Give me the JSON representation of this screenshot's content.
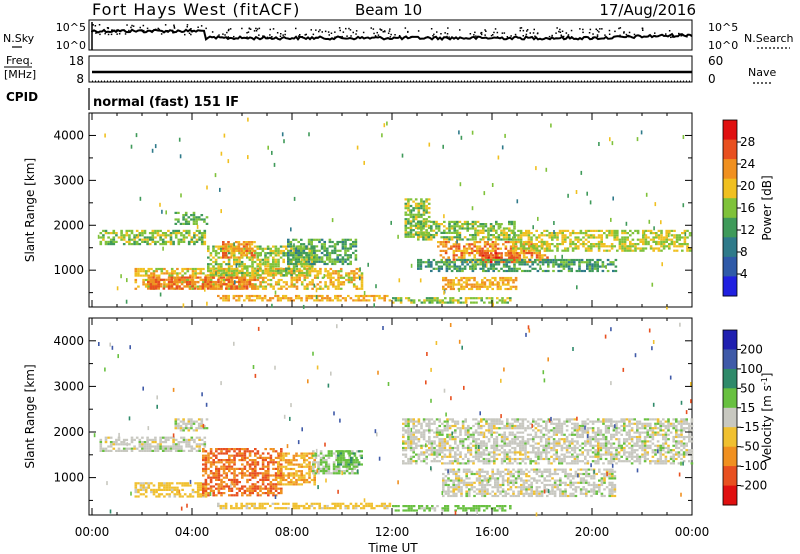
{
  "header": {
    "station": "Fort Hays West (fitACF)",
    "beam": "Beam 10",
    "date": "17/Aug/2016"
  },
  "noise_panel": {
    "left_label": "N.Sky",
    "left_top": "10^5",
    "left_bottom": "10^0",
    "right_top": "10^5",
    "right_bottom": "10^0",
    "right_label": "N.Search"
  },
  "freq_panel": {
    "label_line1": "Freq.",
    "label_line2": "[MHz]",
    "left_top": "18",
    "left_bottom": "8",
    "right_top": "60",
    "right_bottom": "0",
    "right_label": "Nave"
  },
  "cpid": {
    "label": "CPID",
    "value": "normal (fast) 151 IF"
  },
  "chart_data": [
    {
      "type": "heatmap",
      "parameter": "Power",
      "ylabel": "Slant Range [km]",
      "xlabel": "Time UT",
      "x_ticks": [
        "00:00",
        "04:00",
        "08:00",
        "12:00",
        "16:00",
        "20:00",
        "00:00"
      ],
      "y_ticks": [
        1000,
        2000,
        3000,
        4000
      ],
      "xlim_hours": [
        0,
        24
      ],
      "ylim_km": [
        180,
        4500
      ],
      "colorbar": {
        "label": "Power [dB]",
        "ticks": [
          4,
          8,
          12,
          16,
          20,
          24,
          28
        ],
        "range": [
          0,
          32
        ],
        "colors": [
          "#2020e0",
          "#2f5aa8",
          "#2f7a8a",
          "#3f9a5a",
          "#7fc23a",
          "#f0c020",
          "#f09020",
          "#e85020",
          "#e01010"
        ]
      },
      "regions": [
        {
          "t0": 0.3,
          "t1": 4.6,
          "r0": 1560,
          "r1": 1900,
          "level": 14
        },
        {
          "t0": 3.3,
          "t1": 4.6,
          "r0": 2000,
          "r1": 2300,
          "level": 12
        },
        {
          "t0": 1.7,
          "t1": 10.8,
          "r0": 550,
          "r1": 1050,
          "level": 18
        },
        {
          "t0": 2.2,
          "t1": 6.6,
          "r0": 580,
          "r1": 860,
          "level": 24
        },
        {
          "t0": 4.6,
          "t1": 9.0,
          "r0": 850,
          "r1": 1550,
          "level": 15
        },
        {
          "t0": 5.2,
          "t1": 6.6,
          "r0": 1250,
          "r1": 1650,
          "level": 22
        },
        {
          "t0": 7.8,
          "t1": 10.6,
          "r0": 1100,
          "r1": 1700,
          "level": 11
        },
        {
          "t0": 5.0,
          "t1": 12.0,
          "r0": 300,
          "r1": 450,
          "level": 20
        },
        {
          "t0": 12.0,
          "t1": 16.8,
          "r0": 240,
          "r1": 400,
          "level": 14
        },
        {
          "t0": 12.5,
          "t1": 13.5,
          "r0": 1700,
          "r1": 2600,
          "level": 14
        },
        {
          "t0": 13.8,
          "t1": 18.3,
          "r0": 1150,
          "r1": 1650,
          "level": 22
        },
        {
          "t0": 15.5,
          "t1": 17.2,
          "r0": 1150,
          "r1": 1400,
          "level": 26
        },
        {
          "t0": 13.0,
          "t1": 17.0,
          "r0": 1650,
          "r1": 2100,
          "level": 14
        },
        {
          "t0": 16.8,
          "t1": 24.0,
          "r0": 1400,
          "r1": 1900,
          "level": 16
        },
        {
          "t0": 14.0,
          "t1": 17.0,
          "r0": 550,
          "r1": 850,
          "level": 20
        },
        {
          "t0": 13.0,
          "t1": 21.0,
          "r0": 950,
          "r1": 1250,
          "level": 10
        }
      ]
    },
    {
      "type": "heatmap",
      "parameter": "Velocity",
      "ylabel": "Slant Range [km]",
      "xlabel": "Time UT",
      "x_ticks": [
        "00:00",
        "04:00",
        "08:00",
        "12:00",
        "16:00",
        "20:00",
        "00:00"
      ],
      "y_ticks": [
        1000,
        2000,
        3000,
        4000
      ],
      "xlim_hours": [
        0,
        24
      ],
      "ylim_km": [
        180,
        4500
      ],
      "colorbar": {
        "label": "Velocity [m s^-1]",
        "ticks": [
          200,
          100,
          50,
          15,
          -15,
          -50,
          -100,
          -200
        ],
        "colors": [
          "#2020b0",
          "#3f5aa8",
          "#2f8a6a",
          "#68c040",
          "#c8c8c0",
          "#f0c030",
          "#f09020",
          "#e85020",
          "#e01010"
        ]
      },
      "regions": [
        {
          "t0": 0.3,
          "t1": 4.6,
          "r0": 1560,
          "r1": 1900,
          "level": 0
        },
        {
          "t0": 3.3,
          "t1": 4.6,
          "r0": 2000,
          "r1": 2300,
          "level": 0
        },
        {
          "t0": 1.7,
          "t1": 4.6,
          "r0": 550,
          "r1": 900,
          "level": -30
        },
        {
          "t0": 4.4,
          "t1": 7.6,
          "r0": 600,
          "r1": 1650,
          "level": -100
        },
        {
          "t0": 7.4,
          "t1": 9.0,
          "r0": 850,
          "r1": 1550,
          "level": -50
        },
        {
          "t0": 8.8,
          "t1": 10.8,
          "r0": 1050,
          "r1": 1600,
          "level": 15
        },
        {
          "t0": 9.8,
          "t1": 10.8,
          "r0": 1200,
          "r1": 1600,
          "level": 40
        },
        {
          "t0": 5.0,
          "t1": 12.0,
          "r0": 300,
          "r1": 450,
          "level": -30
        },
        {
          "t0": 12.0,
          "t1": 16.8,
          "r0": 240,
          "r1": 400,
          "level": 30
        },
        {
          "t0": 12.4,
          "t1": 24.0,
          "r0": 1300,
          "r1": 2300,
          "level": 0
        },
        {
          "t0": 14.0,
          "t1": 21.0,
          "r0": 550,
          "r1": 1200,
          "level": 0
        }
      ]
    }
  ]
}
